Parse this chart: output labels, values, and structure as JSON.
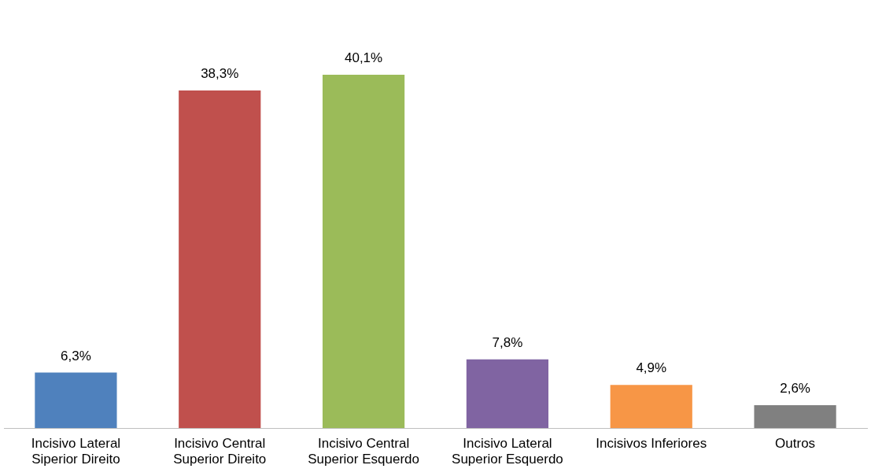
{
  "chart_data": {
    "type": "bar",
    "categories": [
      "Incisivo Lateral Siperior Direito",
      "Incisivo Central Superior Direito",
      "Incisivo Central Superior Esquerdo",
      "Incisivo Lateral Superior Esquerdo",
      "Incisivos Inferiores",
      "Outros"
    ],
    "values": [
      6.3,
      38.3,
      40.1,
      7.8,
      4.9,
      2.6
    ],
    "value_labels": [
      "6,3%",
      "38,3%",
      "40,1%",
      "7,8%",
      "4,9%",
      "2,6%"
    ],
    "colors": [
      "#4f81bd",
      "#c0504d",
      "#9bbb59",
      "#8064a2",
      "#f79646",
      "#808080"
    ],
    "grid": false,
    "legend": false
  }
}
